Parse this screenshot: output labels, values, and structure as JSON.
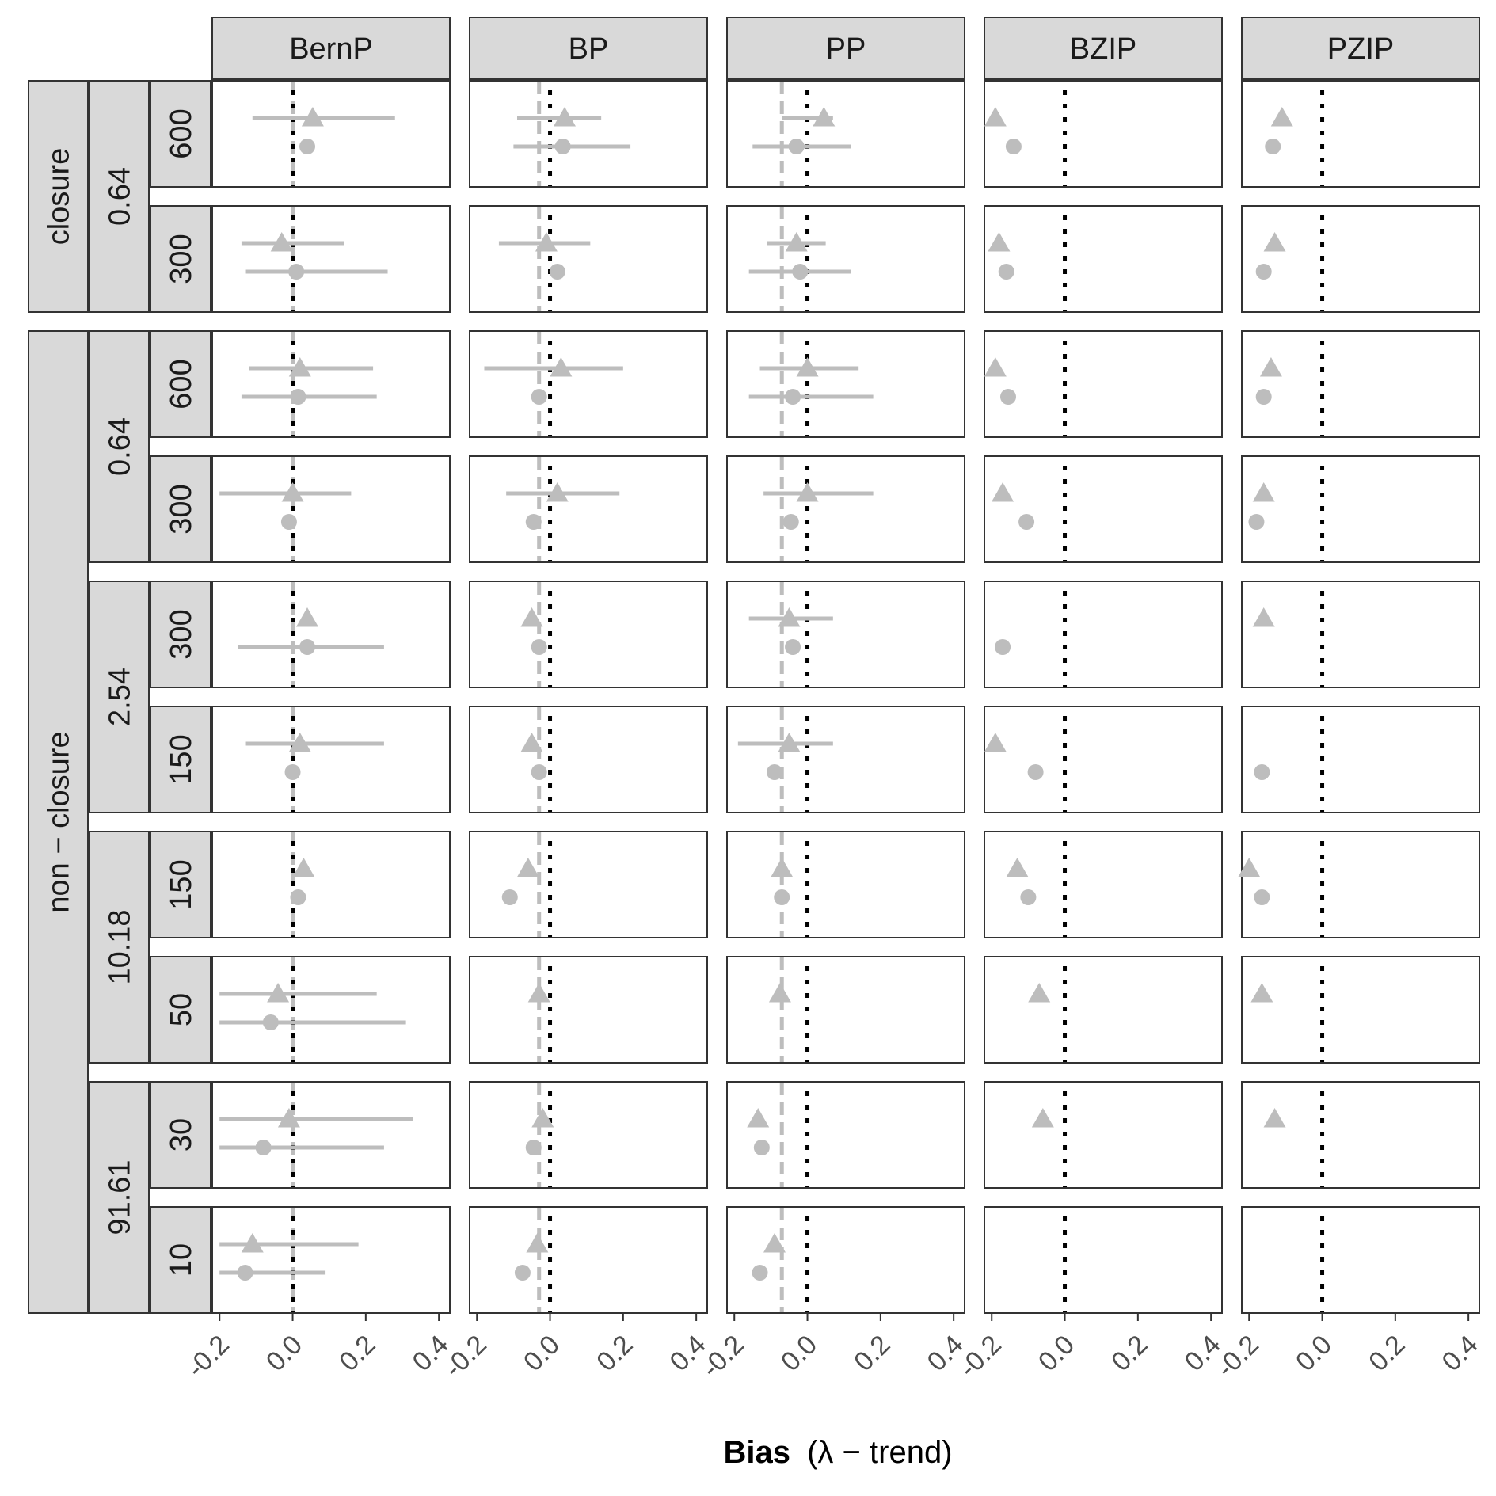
{
  "chart_data": {
    "type": "faceted_scatter_errorbar",
    "xlabel_main": "Bias",
    "xlabel_sub": "(λ − trend)",
    "x_ticks": [
      "-0.2",
      "0.0",
      "0.2",
      "0.4"
    ],
    "x_tick_values": [
      -0.2,
      0.0,
      0.2,
      0.4
    ],
    "xlim": [
      -0.22,
      0.43
    ],
    "grid": false,
    "colors": {
      "marker": "#bdbdbd",
      "reference": "#000000",
      "strip": "#d9d9d9",
      "panel_border": "#333333"
    },
    "columns": [
      {
        "label": "BernP",
        "dashed_x": 0.0
      },
      {
        "label": "BP",
        "dashed_x": -0.03
      },
      {
        "label": "PP",
        "dashed_x": -0.07
      },
      {
        "label": "BZIP",
        "dashed_x": null
      },
      {
        "label": "PZIP",
        "dashed_x": null
      }
    ],
    "row_groups": [
      {
        "label": "closure",
        "subgroups": [
          {
            "label": "0.64",
            "rows": [
              "600",
              "300"
            ]
          }
        ]
      },
      {
        "label": "non − closure",
        "subgroups": [
          {
            "label": "0.64",
            "rows": [
              "600",
              "300"
            ]
          },
          {
            "label": "2.54",
            "rows": [
              "300",
              "150"
            ]
          },
          {
            "label": "10.18",
            "rows": [
              "150",
              "50"
            ]
          },
          {
            "label": "91.61",
            "rows": [
              "30",
              "10"
            ]
          }
        ]
      }
    ],
    "reference_line_x": 0.0,
    "panels": [
      [
        {
          "tri": 0.055,
          "tri_lo": -0.11,
          "tri_hi": 0.28,
          "cir": 0.04,
          "cir_lo": null,
          "cir_hi": null
        },
        {
          "tri": 0.04,
          "tri_lo": -0.09,
          "tri_hi": 0.14,
          "cir": 0.035,
          "cir_lo": -0.1,
          "cir_hi": 0.22
        },
        {
          "tri": 0.045,
          "tri_lo": -0.07,
          "tri_hi": 0.07,
          "cir": -0.03,
          "cir_lo": -0.15,
          "cir_hi": 0.12
        },
        {
          "tri": -0.19,
          "tri_lo": null,
          "tri_hi": null,
          "cir": -0.14,
          "cir_lo": null,
          "cir_hi": null
        },
        {
          "tri": -0.11,
          "tri_lo": null,
          "tri_hi": null,
          "cir": -0.135,
          "cir_lo": null,
          "cir_hi": null
        }
      ],
      [
        {
          "tri": -0.03,
          "tri_lo": -0.14,
          "tri_hi": 0.14,
          "cir": 0.01,
          "cir_lo": -0.13,
          "cir_hi": 0.26
        },
        {
          "tri": -0.01,
          "tri_lo": -0.14,
          "tri_hi": 0.11,
          "cir": 0.02,
          "cir_lo": null,
          "cir_hi": null
        },
        {
          "tri": -0.03,
          "tri_lo": -0.11,
          "tri_hi": 0.05,
          "cir": -0.02,
          "cir_lo": -0.16,
          "cir_hi": 0.12
        },
        {
          "tri": -0.18,
          "tri_lo": null,
          "tri_hi": null,
          "cir": -0.16,
          "cir_lo": null,
          "cir_hi": null
        },
        {
          "tri": -0.13,
          "tri_lo": null,
          "tri_hi": null,
          "cir": -0.16,
          "cir_lo": null,
          "cir_hi": null
        }
      ],
      [
        {
          "tri": 0.02,
          "tri_lo": -0.12,
          "tri_hi": 0.22,
          "cir": 0.015,
          "cir_lo": -0.14,
          "cir_hi": 0.23
        },
        {
          "tri": 0.03,
          "tri_lo": -0.18,
          "tri_hi": 0.2,
          "cir": -0.03,
          "cir_lo": null,
          "cir_hi": null
        },
        {
          "tri": 0.0,
          "tri_lo": -0.13,
          "tri_hi": 0.14,
          "cir": -0.04,
          "cir_lo": -0.16,
          "cir_hi": 0.18
        },
        {
          "tri": -0.19,
          "tri_lo": null,
          "tri_hi": null,
          "cir": -0.155,
          "cir_lo": null,
          "cir_hi": null
        },
        {
          "tri": -0.14,
          "tri_lo": null,
          "tri_hi": null,
          "cir": -0.16,
          "cir_lo": null,
          "cir_hi": null
        }
      ],
      [
        {
          "tri": 0.0,
          "tri_lo": -0.2,
          "tri_hi": 0.16,
          "cir": -0.01,
          "cir_lo": null,
          "cir_hi": null
        },
        {
          "tri": 0.02,
          "tri_lo": -0.12,
          "tri_hi": 0.19,
          "cir": -0.045,
          "cir_lo": null,
          "cir_hi": null
        },
        {
          "tri": 0.0,
          "tri_lo": -0.12,
          "tri_hi": 0.18,
          "cir": -0.045,
          "cir_lo": null,
          "cir_hi": null
        },
        {
          "tri": -0.17,
          "tri_lo": null,
          "tri_hi": null,
          "cir": -0.105,
          "cir_lo": null,
          "cir_hi": null
        },
        {
          "tri": -0.16,
          "tri_lo": null,
          "tri_hi": null,
          "cir": -0.18,
          "cir_lo": null,
          "cir_hi": null
        }
      ],
      [
        {
          "tri": 0.04,
          "tri_lo": null,
          "tri_hi": null,
          "cir": 0.04,
          "cir_lo": -0.15,
          "cir_hi": 0.25
        },
        {
          "tri": -0.05,
          "tri_lo": null,
          "tri_hi": null,
          "cir": -0.03,
          "cir_lo": null,
          "cir_hi": null
        },
        {
          "tri": -0.05,
          "tri_lo": -0.16,
          "tri_hi": 0.07,
          "cir": -0.04,
          "cir_lo": null,
          "cir_hi": null
        },
        {
          "tri": null,
          "tri_lo": null,
          "tri_hi": null,
          "cir": -0.17,
          "cir_lo": null,
          "cir_hi": null
        },
        {
          "tri": -0.16,
          "tri_lo": null,
          "tri_hi": null,
          "cir": null,
          "cir_lo": null,
          "cir_hi": null
        }
      ],
      [
        {
          "tri": 0.02,
          "tri_lo": -0.13,
          "tri_hi": 0.25,
          "cir": 0.0,
          "cir_lo": null,
          "cir_hi": null
        },
        {
          "tri": -0.05,
          "tri_lo": null,
          "tri_hi": null,
          "cir": -0.03,
          "cir_lo": null,
          "cir_hi": null
        },
        {
          "tri": -0.05,
          "tri_lo": -0.19,
          "tri_hi": 0.07,
          "cir": -0.09,
          "cir_lo": null,
          "cir_hi": null
        },
        {
          "tri": -0.19,
          "tri_lo": null,
          "tri_hi": null,
          "cir": -0.08,
          "cir_lo": null,
          "cir_hi": null
        },
        {
          "tri": null,
          "tri_lo": null,
          "tri_hi": null,
          "cir": -0.165,
          "cir_lo": null,
          "cir_hi": null
        }
      ],
      [
        {
          "tri": 0.03,
          "tri_lo": null,
          "tri_hi": null,
          "cir": 0.015,
          "cir_lo": null,
          "cir_hi": null
        },
        {
          "tri": -0.06,
          "tri_lo": null,
          "tri_hi": null,
          "cir": -0.11,
          "cir_lo": null,
          "cir_hi": null
        },
        {
          "tri": -0.07,
          "tri_lo": null,
          "tri_hi": null,
          "cir": -0.07,
          "cir_lo": null,
          "cir_hi": null
        },
        {
          "tri": -0.13,
          "tri_lo": null,
          "tri_hi": null,
          "cir": -0.1,
          "cir_lo": null,
          "cir_hi": null
        },
        {
          "tri": -0.2,
          "tri_lo": null,
          "tri_hi": null,
          "cir": -0.165,
          "cir_lo": null,
          "cir_hi": null
        }
      ],
      [
        {
          "tri": -0.04,
          "tri_lo": -0.2,
          "tri_hi": 0.23,
          "cir": -0.06,
          "cir_lo": -0.2,
          "cir_hi": 0.31
        },
        {
          "tri": -0.03,
          "tri_lo": null,
          "tri_hi": null,
          "cir": null,
          "cir_lo": null,
          "cir_hi": null
        },
        {
          "tri": -0.075,
          "tri_lo": null,
          "tri_hi": null,
          "cir": null,
          "cir_lo": null,
          "cir_hi": null
        },
        {
          "tri": -0.07,
          "tri_lo": null,
          "tri_hi": null,
          "cir": null,
          "cir_lo": null,
          "cir_hi": null
        },
        {
          "tri": -0.165,
          "tri_lo": null,
          "tri_hi": null,
          "cir": null,
          "cir_lo": null,
          "cir_hi": null
        }
      ],
      [
        {
          "tri": -0.01,
          "tri_lo": -0.2,
          "tri_hi": 0.33,
          "cir": -0.08,
          "cir_lo": -0.2,
          "cir_hi": 0.25
        },
        {
          "tri": -0.02,
          "tri_lo": null,
          "tri_hi": null,
          "cir": -0.045,
          "cir_lo": null,
          "cir_hi": null
        },
        {
          "tri": -0.135,
          "tri_lo": null,
          "tri_hi": null,
          "cir": -0.125,
          "cir_lo": null,
          "cir_hi": null
        },
        {
          "tri": -0.06,
          "tri_lo": null,
          "tri_hi": null,
          "cir": null,
          "cir_lo": null,
          "cir_hi": null
        },
        {
          "tri": -0.13,
          "tri_lo": null,
          "tri_hi": null,
          "cir": null,
          "cir_lo": null,
          "cir_hi": null
        }
      ],
      [
        {
          "tri": -0.11,
          "tri_lo": -0.2,
          "tri_hi": 0.18,
          "cir": -0.13,
          "cir_lo": -0.2,
          "cir_hi": 0.09
        },
        {
          "tri": -0.035,
          "tri_lo": null,
          "tri_hi": null,
          "cir": -0.075,
          "cir_lo": null,
          "cir_hi": null
        },
        {
          "tri": -0.09,
          "tri_lo": null,
          "tri_hi": null,
          "cir": -0.13,
          "cir_lo": null,
          "cir_hi": null
        },
        {
          "tri": null,
          "tri_lo": null,
          "tri_hi": null,
          "cir": null,
          "cir_lo": null,
          "cir_hi": null
        },
        {
          "tri": null,
          "tri_lo": null,
          "tri_hi": null,
          "cir": null,
          "cir_lo": null,
          "cir_hi": null
        }
      ]
    ]
  }
}
